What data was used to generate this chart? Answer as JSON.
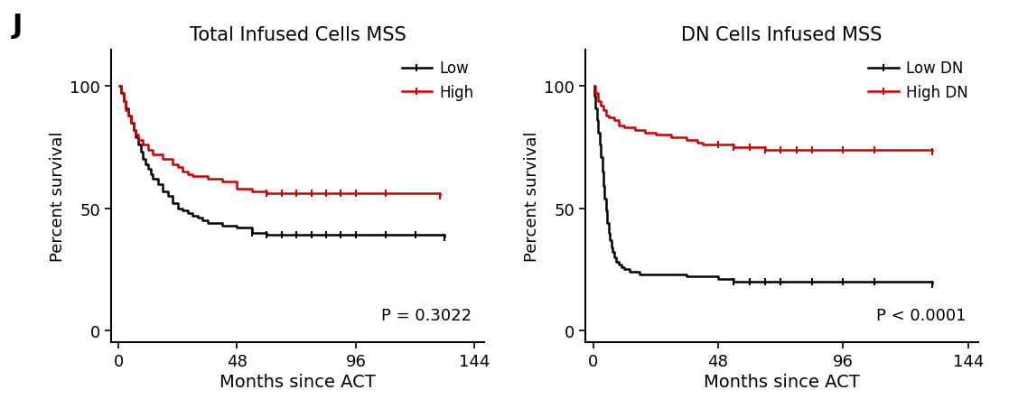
{
  "fig_width": 11.17,
  "fig_height": 4.64,
  "dpi": 100,
  "background_color": "#ffffff",
  "panel_label": "J",
  "panel_label_fontsize": 22,
  "panel_label_fontweight": "bold",
  "plot1_title": "Total Infused Cells MSS",
  "plot2_title": "DN Cells Infused MSS",
  "title_fontsize": 15,
  "xlabel": "Months since ACT",
  "ylabel": "Percent survival",
  "xlabel_fontsize": 14,
  "ylabel_fontsize": 13,
  "xlim": [
    -3,
    148
  ],
  "ylim": [
    -5,
    115
  ],
  "xticks": [
    0,
    48,
    96,
    144
  ],
  "yticks": [
    0,
    50,
    100
  ],
  "p_value_1": "P = 0.3022",
  "p_value_2": "P < 0.0001",
  "p_fontsize": 13,
  "plot1_low_times": [
    0,
    1,
    2,
    3,
    4,
    5,
    6,
    7,
    8,
    9,
    10,
    11,
    12,
    13,
    14,
    16,
    18,
    20,
    22,
    24,
    26,
    28,
    30,
    32,
    34,
    36,
    42,
    48,
    54,
    60,
    66,
    72,
    84,
    96,
    108,
    120,
    132
  ],
  "plot1_low_surv": [
    100,
    97,
    94,
    91,
    88,
    85,
    82,
    79,
    76,
    73,
    70,
    68,
    66,
    64,
    62,
    60,
    57,
    55,
    52,
    50,
    49,
    48,
    47,
    46,
    45,
    44,
    43,
    42,
    40,
    39,
    39,
    39,
    39,
    39,
    39,
    39,
    38
  ],
  "plot1_high_times": [
    0,
    1,
    2,
    3,
    4,
    5,
    6,
    7,
    8,
    10,
    12,
    14,
    18,
    22,
    24,
    26,
    28,
    30,
    36,
    42,
    48,
    54,
    60,
    66,
    72,
    78,
    84,
    90,
    96,
    108,
    130
  ],
  "plot1_high_surv": [
    100,
    97,
    94,
    90,
    88,
    85,
    82,
    80,
    78,
    76,
    74,
    72,
    70,
    68,
    67,
    65,
    64,
    63,
    62,
    61,
    58,
    57,
    56,
    56,
    56,
    56,
    56,
    56,
    56,
    56,
    55
  ],
  "plot1_cens_low_t": [
    54,
    60,
    66,
    72,
    78,
    84,
    90,
    96,
    108,
    120,
    132
  ],
  "plot1_cens_low_s": [
    40,
    39,
    39,
    39,
    39,
    39,
    39,
    39,
    39,
    39,
    38
  ],
  "plot1_cens_high_t": [
    60,
    66,
    72,
    78,
    84,
    90,
    96,
    108,
    130
  ],
  "plot1_cens_high_s": [
    56,
    56,
    56,
    56,
    56,
    56,
    56,
    56,
    55
  ],
  "plot2_low_times": [
    0,
    0.5,
    1,
    1.5,
    2,
    2.5,
    3,
    3.5,
    4,
    4.5,
    5,
    5.5,
    6,
    6.5,
    7,
    7.5,
    8,
    9,
    10,
    11,
    12,
    13,
    14,
    15,
    16,
    18,
    20,
    22,
    24,
    30,
    36,
    42,
    48,
    54,
    60,
    66,
    72,
    84,
    96,
    108,
    130
  ],
  "plot2_low_surv": [
    100,
    96,
    91,
    86,
    81,
    76,
    71,
    65,
    59,
    54,
    49,
    44,
    40,
    37,
    34,
    32,
    30,
    28,
    27,
    26,
    25,
    25,
    24,
    24,
    24,
    23,
    23,
    23,
    23,
    23,
    22,
    22,
    21,
    20,
    20,
    20,
    20,
    20,
    20,
    20,
    19
  ],
  "plot2_high_times": [
    0,
    1,
    2,
    3,
    4,
    5,
    6,
    8,
    10,
    12,
    16,
    20,
    24,
    30,
    36,
    40,
    42,
    48,
    54,
    60,
    66,
    72,
    78,
    84,
    90,
    96,
    108,
    130
  ],
  "plot2_high_surv": [
    100,
    97,
    94,
    92,
    90,
    88,
    87,
    86,
    84,
    83,
    82,
    81,
    80,
    79,
    78,
    77,
    76,
    76,
    75,
    75,
    74,
    74,
    74,
    74,
    74,
    74,
    74,
    73
  ],
  "plot2_cens_low_t": [
    54,
    60,
    66,
    72,
    84,
    96,
    108,
    130
  ],
  "plot2_cens_low_s": [
    20,
    20,
    20,
    20,
    20,
    20,
    20,
    19
  ],
  "plot2_cens_high_t": [
    48,
    54,
    60,
    66,
    72,
    78,
    84,
    96,
    108,
    130
  ],
  "plot2_cens_high_s": [
    76,
    75,
    75,
    74,
    74,
    74,
    74,
    74,
    74,
    73
  ],
  "low_color": "#000000",
  "high_color": "#cc0000",
  "linewidth": 1.8,
  "tick_fontsize": 13,
  "censoring_size": 6,
  "censoring_lw": 1.5
}
